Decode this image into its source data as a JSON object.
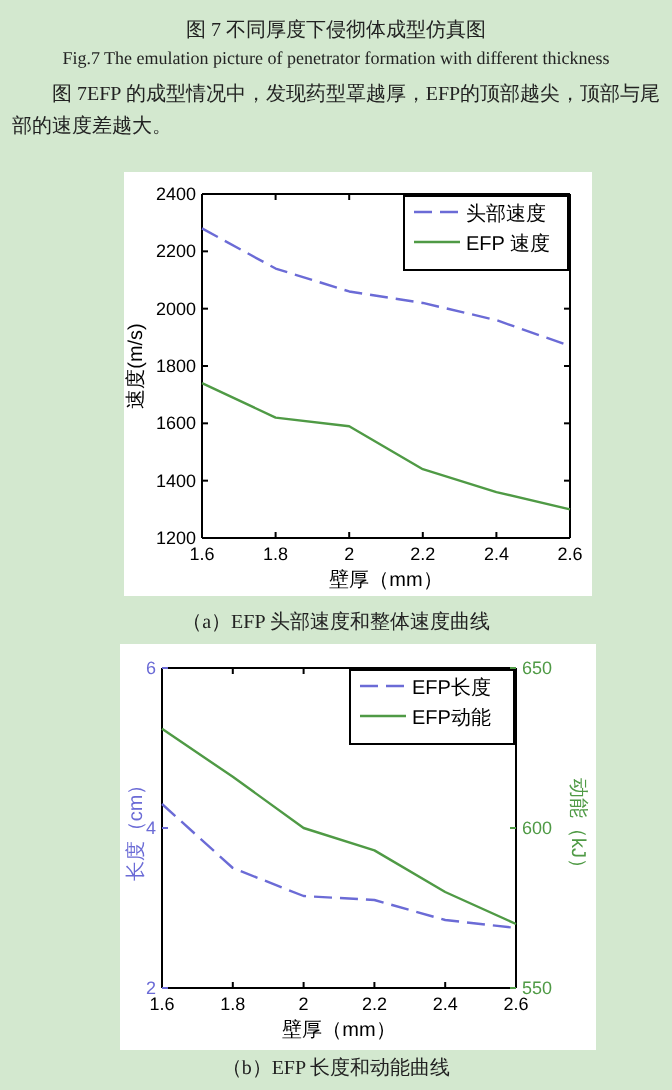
{
  "chart_data": [
    {
      "type": "line",
      "xlabel": "壁厚（mm）",
      "ylabel": "速度(m/s)",
      "annotations": [
        "图 7  不同厚度下侵彻体成型仿真图",
        "Fig.7 The emulation picture of penetrator formation with different thickness",
        "图 7EFP 的成型情况中，发现药型罩越厚，EFP的顶部越尖，顶部与尾部的速度差越大。",
        "（a）EFP 头部速度和整体速度曲线"
      ],
      "x": [
        1.6,
        1.8,
        2.0,
        2.2,
        2.4,
        2.6
      ],
      "series": [
        {
          "name": "头部速度",
          "color": "#6b6bd6",
          "line_style": "dashed",
          "values": [
            2280,
            2140,
            2060,
            2020,
            1960,
            1870
          ]
        },
        {
          "name": "EFP 速度",
          "color": "#4f9a45",
          "line_style": "solid",
          "values": [
            1740,
            1620,
            1590,
            1440,
            1360,
            1300
          ]
        }
      ],
      "xlim": [
        1.6,
        2.6
      ],
      "xticks": [
        1.6,
        1.8,
        2,
        2.2,
        2.4,
        2.6
      ],
      "ylim": [
        1200,
        2400
      ],
      "yticks": [
        1200,
        1400,
        1600,
        1800,
        2000,
        2200,
        2400
      ],
      "legend": "top right"
    },
    {
      "type": "line",
      "xlabel": "壁厚（mm）",
      "ylabel": "长度（cm）",
      "y2label": "动能（kJ）",
      "annotations": [
        "（b）EFP 长度和动能曲线"
      ],
      "x": [
        1.6,
        1.8,
        2.0,
        2.2,
        2.4,
        2.6
      ],
      "series": [
        {
          "name": "EFP长度",
          "color": "#6b6bd6",
          "line_style": "dashed",
          "values": [
            4.3,
            3.5,
            3.15,
            3.1,
            2.85,
            2.75
          ]
        },
        {
          "name": "EFP动能",
          "color": "#4f9a45",
          "line_style": "solid",
          "axis": "y2",
          "values": [
            631,
            616,
            600,
            593,
            580,
            570
          ]
        }
      ],
      "xlim": [
        1.6,
        2.6
      ],
      "xticks": [
        1.6,
        1.8,
        2,
        2.2,
        2.4,
        2.6
      ],
      "ylim": [
        2,
        6
      ],
      "yticks": [
        2,
        4,
        6
      ],
      "y2lim": [
        550,
        650
      ],
      "y2ticks": [
        550,
        600,
        650
      ],
      "legend": "top right"
    }
  ]
}
